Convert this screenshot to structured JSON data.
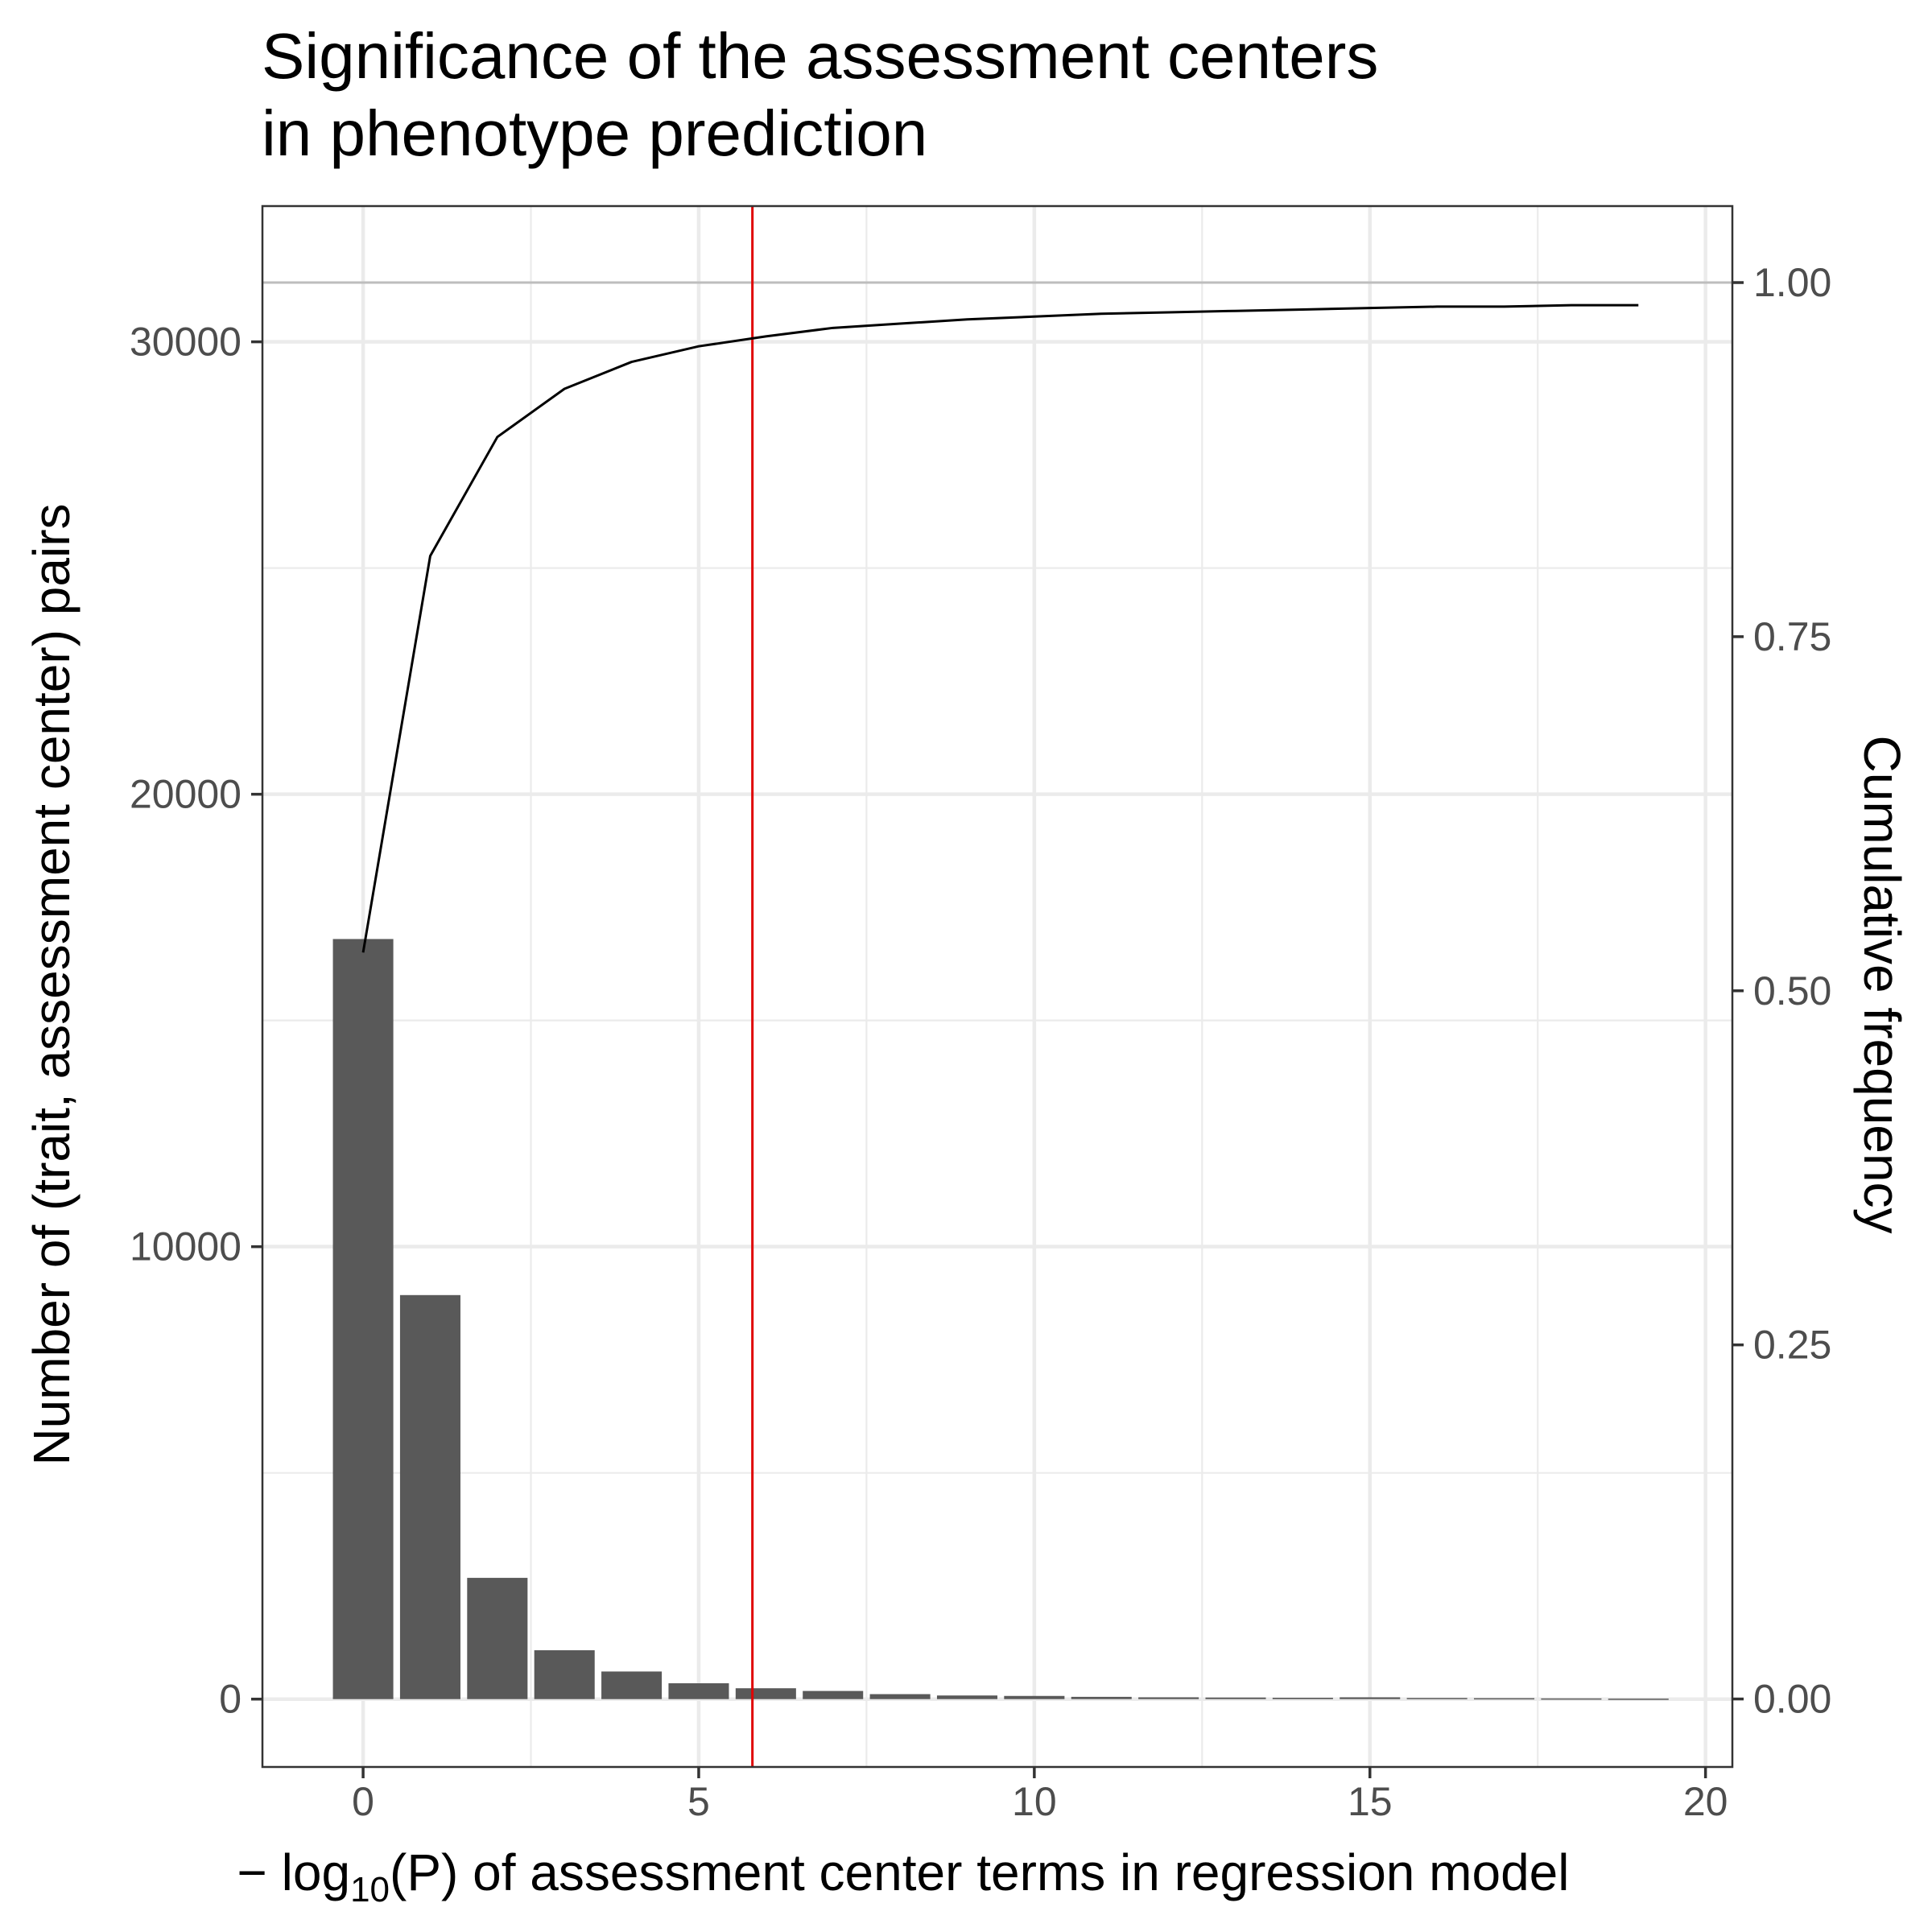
{
  "chart_data": {
    "type": "bar",
    "title_lines": [
      "Significance of the assessment centers",
      "in phenotype prediction"
    ],
    "xlabel": {
      "prefix": "− log",
      "subscript": "10",
      "suffix": "(P) of assessment center terms in regression model"
    },
    "ylabel": "Number of (trait, assessment center) pairs",
    "y2label": "Cumulative frequency",
    "xlim": [
      -1.5,
      20.4
    ],
    "ylim": [
      -1500,
      33000
    ],
    "y2lim": [
      -0.048,
      1.054
    ],
    "x_ticks": [
      0,
      5,
      10,
      15,
      20
    ],
    "x_tick_labels": [
      "0",
      "5",
      "10",
      "15",
      "20"
    ],
    "y_ticks": [
      0,
      10000,
      20000,
      30000
    ],
    "y_tick_labels": [
      "0",
      "10000",
      "20000",
      "30000"
    ],
    "y2_ticks": [
      0,
      0.25,
      0.5,
      0.75,
      1.0
    ],
    "y2_tick_labels": [
      "0.00",
      "0.25",
      "0.50",
      "0.75",
      "1.00"
    ],
    "bar_width": 0.9,
    "bars": {
      "x": [
        0,
        1,
        2,
        3,
        4,
        5,
        6,
        7,
        8,
        9,
        10,
        11,
        12,
        13,
        14,
        15,
        16,
        17,
        18,
        19
      ],
      "values": [
        16800,
        8930,
        2680,
        1080,
        610,
        350,
        240,
        180,
        110,
        80,
        70,
        50,
        40,
        35,
        30,
        40,
        25,
        20,
        15,
        10
      ]
    },
    "cumulative_line": {
      "x": [
        0,
        1,
        2,
        3,
        4,
        5,
        6,
        7,
        8,
        9,
        10,
        11,
        12,
        13,
        14,
        15,
        16,
        17,
        18,
        19
      ],
      "values": [
        0.527,
        0.807,
        0.891,
        0.925,
        0.944,
        0.955,
        0.962,
        0.968,
        0.971,
        0.974,
        0.976,
        0.978,
        0.979,
        0.98,
        0.981,
        0.982,
        0.983,
        0.983,
        0.984,
        0.984
      ],
      "color": "#000000"
    },
    "vline": {
      "x": 5.8,
      "color": "#e00000"
    },
    "hline_y2": {
      "y": 1.0,
      "color": "#bdbdbd"
    },
    "bar_color": "#595959",
    "grid": true,
    "theme": "bw"
  }
}
